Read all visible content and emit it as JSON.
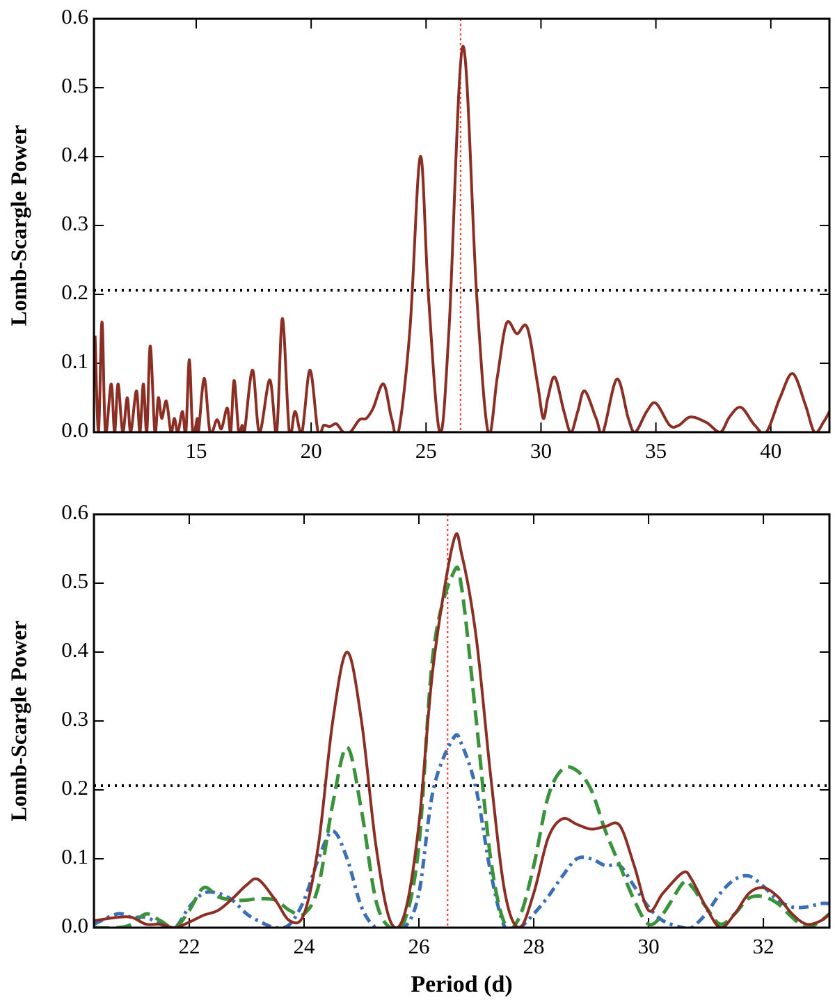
{
  "chart_data": [
    {
      "type": "line",
      "ylabel": "Lomb-Scargle Power",
      "xlim": [
        10.55,
        42.55
      ],
      "ylim": [
        0,
        0.6
      ],
      "xticks": [
        15,
        20,
        25,
        30,
        35,
        40
      ],
      "yticks": [
        {
          "value": 0,
          "label": "0.0"
        },
        0.1,
        0.2,
        0.3,
        0.4,
        0.5,
        0.6
      ],
      "hlines": [
        0.206
      ],
      "hline_color": "#000000",
      "vlines": [
        26.5
      ],
      "vline_color": "#ff2a2a",
      "x": [
        10.6,
        10.75,
        10.9,
        11.05,
        11.3,
        11.45,
        11.6,
        11.8,
        12.0,
        12.15,
        12.4,
        12.55,
        12.7,
        12.85,
        13.0,
        13.2,
        13.35,
        13.5,
        13.7,
        13.9,
        14.05,
        14.2,
        14.4,
        14.55,
        14.7,
        14.85,
        15.05,
        15.1,
        15.35,
        15.6,
        15.9,
        16.1,
        16.35,
        16.5,
        16.65,
        16.85,
        17.0,
        17.1,
        17.45,
        17.75,
        18.2,
        18.5,
        18.75,
        19.05,
        19.3,
        19.6,
        19.95,
        20.3,
        20.55,
        20.8,
        21.1,
        21.4,
        21.7,
        22.1,
        22.4,
        22.7,
        23.15,
        23.5,
        23.8,
        24.3,
        24.75,
        25.1,
        25.6,
        26.0,
        26.6,
        27.2,
        27.7,
        28.1,
        28.5,
        28.95,
        29.4,
        29.85,
        30.1,
        30.3,
        30.6,
        31.0,
        31.3,
        31.6,
        31.9,
        32.4,
        32.7,
        33.3,
        33.8,
        34.1,
        34.6,
        35.0,
        35.6,
        36.0,
        36.5,
        37.2,
        37.8,
        38.2,
        38.7,
        39.3,
        39.8,
        40.4,
        40.95,
        41.5,
        41.9,
        42.3,
        42.55
      ],
      "series": [
        {
          "color": "#8b2e24",
          "dash": "solid",
          "values": [
            0.14,
            0.0,
            0.16,
            0.0,
            0.07,
            0.0,
            0.07,
            0.0,
            0.05,
            0.0,
            0.06,
            0.0,
            0.07,
            0.0,
            0.125,
            0.0,
            0.05,
            0.02,
            0.045,
            0.0,
            0.02,
            0.0,
            0.03,
            0.0,
            0.105,
            0.0,
            0.02,
            0.0,
            0.078,
            0.0,
            0.018,
            0.005,
            0.035,
            0.0,
            0.075,
            0.0,
            0.01,
            0.0,
            0.09,
            0.0,
            0.076,
            0.0,
            0.165,
            0.0,
            0.03,
            0.0,
            0.09,
            0.0,
            0.01,
            0.008,
            0.012,
            0.0,
            0.0,
            0.018,
            0.02,
            0.035,
            0.07,
            0.02,
            0.0,
            0.15,
            0.4,
            0.2,
            0.0,
            0.15,
            0.56,
            0.2,
            0.0,
            0.08,
            0.158,
            0.143,
            0.152,
            0.07,
            0.02,
            0.05,
            0.08,
            0.03,
            0.0,
            0.03,
            0.06,
            0.02,
            0.0,
            0.077,
            0.02,
            0.0,
            0.03,
            0.042,
            0.01,
            0.01,
            0.022,
            0.014,
            0.0,
            0.022,
            0.036,
            0.01,
            0.0,
            0.05,
            0.085,
            0.04,
            0.0,
            0.015,
            0.03
          ]
        }
      ]
    },
    {
      "type": "line",
      "ylabel": "Lomb-Scargle Power",
      "xlabel": "Period (d)",
      "xlim": [
        20.34,
        33.15
      ],
      "ylim": [
        0,
        0.6
      ],
      "xticks": [
        22,
        24,
        26,
        28,
        30,
        32
      ],
      "yticks": [
        {
          "value": 0,
          "label": "0.0"
        },
        0.1,
        0.2,
        0.3,
        0.4,
        0.5,
        0.6
      ],
      "hlines": [
        0.206
      ],
      "hline_color": "#000000",
      "vlines": [
        26.5
      ],
      "vline_color": "#ff2a2a",
      "x": [
        20.34,
        20.75,
        21.0,
        21.25,
        21.5,
        21.75,
        22.0,
        22.25,
        22.5,
        22.75,
        23.0,
        23.2,
        23.5,
        23.75,
        24.0,
        24.25,
        24.5,
        24.75,
        25.0,
        25.25,
        25.5,
        25.75,
        26.0,
        26.25,
        26.6,
        26.75,
        27.0,
        27.25,
        27.5,
        27.75,
        28.0,
        28.25,
        28.5,
        28.75,
        29.0,
        29.25,
        29.5,
        29.75,
        30.0,
        30.25,
        30.6,
        30.75,
        31.0,
        31.25,
        31.5,
        31.75,
        32.0,
        32.25,
        32.5,
        32.75,
        33.0,
        33.15
      ],
      "series": [
        {
          "color": "#3a6eb5",
          "dash": "dashdot",
          "values": [
            0.005,
            0.02,
            0.015,
            0.015,
            0.005,
            0.0,
            0.03,
            0.05,
            0.05,
            0.04,
            0.02,
            0.01,
            0.0,
            0.005,
            0.04,
            0.1,
            0.14,
            0.1,
            0.03,
            0.0,
            0.0,
            0.0,
            0.05,
            0.2,
            0.275,
            0.265,
            0.2,
            0.08,
            0.0,
            0.0,
            0.02,
            0.045,
            0.075,
            0.1,
            0.1,
            0.09,
            0.09,
            0.06,
            0.03,
            0.01,
            0.0,
            0.0,
            0.02,
            0.05,
            0.07,
            0.075,
            0.06,
            0.04,
            0.03,
            0.03,
            0.035,
            0.035
          ]
        },
        {
          "color": "#3a923a",
          "dash": "dashed",
          "values": [
            0.0,
            0.0,
            0.005,
            0.02,
            0.01,
            0.0,
            0.025,
            0.058,
            0.045,
            0.04,
            0.04,
            0.042,
            0.04,
            0.025,
            0.02,
            0.06,
            0.18,
            0.262,
            0.17,
            0.04,
            0.0,
            0.01,
            0.12,
            0.4,
            0.515,
            0.49,
            0.3,
            0.1,
            0.005,
            0.015,
            0.09,
            0.19,
            0.23,
            0.228,
            0.2,
            0.14,
            0.09,
            0.04,
            0.005,
            0.02,
            0.065,
            0.06,
            0.03,
            0.005,
            0.02,
            0.043,
            0.045,
            0.035,
            0.015,
            0.0,
            0.01,
            0.02
          ]
        },
        {
          "color": "#8b2e24",
          "dash": "solid",
          "values": [
            0.01,
            0.015,
            0.015,
            0.005,
            0.005,
            0.0,
            0.008,
            0.018,
            0.025,
            0.042,
            0.062,
            0.07,
            0.04,
            0.01,
            0.02,
            0.12,
            0.3,
            0.4,
            0.3,
            0.12,
            0.01,
            0.02,
            0.15,
            0.38,
            0.56,
            0.54,
            0.42,
            0.22,
            0.05,
            0.0,
            0.05,
            0.13,
            0.158,
            0.15,
            0.143,
            0.147,
            0.148,
            0.09,
            0.025,
            0.05,
            0.08,
            0.07,
            0.03,
            0.0,
            0.02,
            0.05,
            0.058,
            0.045,
            0.02,
            0.005,
            0.01,
            0.02
          ]
        }
      ]
    }
  ]
}
